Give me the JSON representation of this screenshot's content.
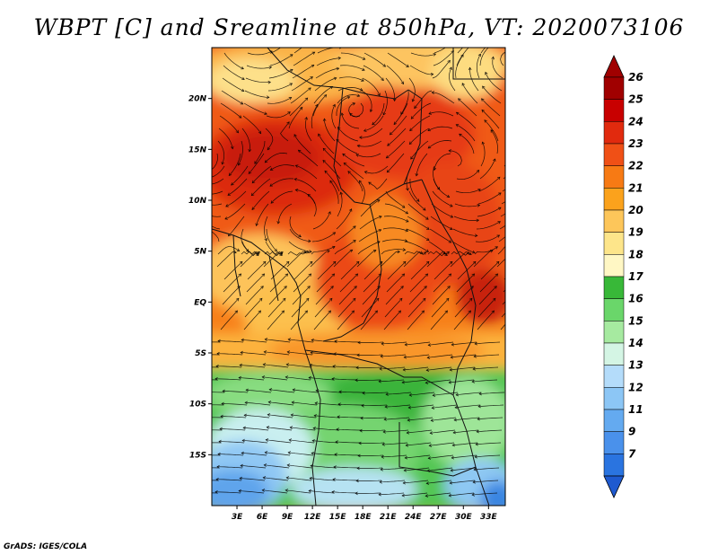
{
  "title": "WBPT [C] and Sreamline at 850hPa, VT: 2020073106",
  "footer": "GrADS: IGES/COLA",
  "map": {
    "variable": "Wet-bulb potential temperature",
    "units": "C",
    "level": "850hPa",
    "lon_range": [
      0,
      35
    ],
    "lat_range": [
      -20,
      25
    ],
    "lat_ticks": [
      {
        "value": 20,
        "label": "20N"
      },
      {
        "value": 15,
        "label": "15N"
      },
      {
        "value": 10,
        "label": "10N"
      },
      {
        "value": 5,
        "label": "5N"
      },
      {
        "value": 0,
        "label": "EQ"
      },
      {
        "value": -5,
        "label": "5S"
      },
      {
        "value": -10,
        "label": "10S"
      },
      {
        "value": -15,
        "label": "15S"
      }
    ],
    "lon_ticks": [
      {
        "value": 3,
        "label": "3E"
      },
      {
        "value": 6,
        "label": "6E"
      },
      {
        "value": 9,
        "label": "9E"
      },
      {
        "value": 12,
        "label": "12E"
      },
      {
        "value": 15,
        "label": "15E"
      },
      {
        "value": 18,
        "label": "18E"
      },
      {
        "value": 21,
        "label": "21E"
      },
      {
        "value": 24,
        "label": "24E"
      },
      {
        "value": 27,
        "label": "27E"
      },
      {
        "value": 30,
        "label": "30E"
      },
      {
        "value": 33,
        "label": "33E"
      }
    ]
  },
  "colorbar": {
    "levels": [
      {
        "label": "26",
        "color": "#a00000"
      },
      {
        "label": "25",
        "color": "#c80000"
      },
      {
        "label": "24",
        "color": "#e12a0e"
      },
      {
        "label": "23",
        "color": "#f05016"
      },
      {
        "label": "22",
        "color": "#f77a14"
      },
      {
        "label": "21",
        "color": "#fba21c"
      },
      {
        "label": "20",
        "color": "#fdc65a"
      },
      {
        "label": "19",
        "color": "#fde58a"
      },
      {
        "label": "18",
        "color": "#fff7c4"
      },
      {
        "label": "17",
        "color": "#38b838"
      },
      {
        "label": "16",
        "color": "#6ad66a"
      },
      {
        "label": "15",
        "color": "#a6eaa0"
      },
      {
        "label": "14",
        "color": "#d4f5e4"
      },
      {
        "label": "13",
        "color": "#b4dcfa"
      },
      {
        "label": "12",
        "color": "#8cc6f5"
      },
      {
        "label": "11",
        "color": "#64aaf0"
      },
      {
        "label": "9",
        "color": "#4a91eb"
      },
      {
        "label": "7",
        "color": "#2a74e0"
      }
    ],
    "top_color": "#a00000",
    "bottom_color": "#1e5ad0"
  }
}
